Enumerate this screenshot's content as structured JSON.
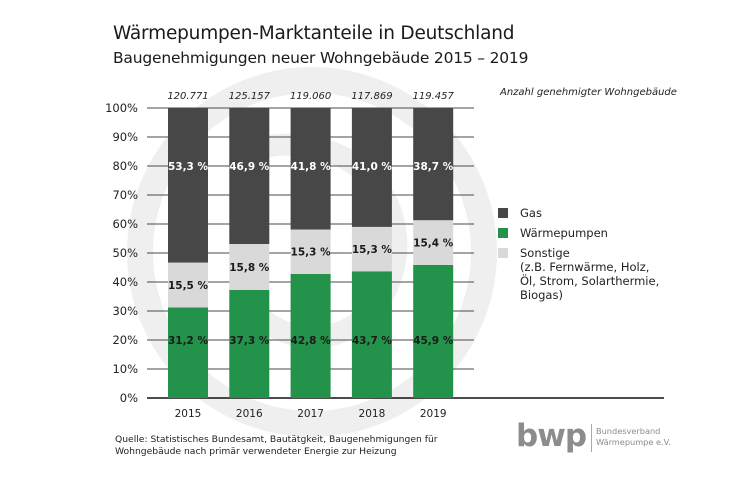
{
  "title": "Wärmepumpen-Marktanteile in Deutschland",
  "subtitle": "Baugenehmigungen neuer Wohngebäude 2015 – 2019",
  "count_caption": "Anzahl genehmigter Wohngebäude",
  "source": "Quelle: Statistisches Bundesamt, Bautätgkeit, Baugenehmigungen für\nWohngebäude nach primär verwendeter Energie zur Heizung",
  "logo": {
    "mark": "bwp",
    "text": "Bundesverband\nWärmepumpe e.V."
  },
  "colors": {
    "gas": "#474747",
    "waermepumpen": "#23924a",
    "sonstige": "#d9d9d9",
    "grid": "#4a4a4a",
    "watermark": "#efefef"
  },
  "chart_data": {
    "type": "bar",
    "stacked": true,
    "title": "Wärmepumpen-Marktanteile in Deutschland",
    "subtitle": "Baugenehmigungen neuer Wohngebäude 2015 – 2019",
    "xlabel": "",
    "ylabel": "",
    "ylim": [
      0,
      100
    ],
    "yticks": [
      0,
      10,
      20,
      30,
      40,
      50,
      60,
      70,
      80,
      90,
      100
    ],
    "ytick_labels": [
      "0%",
      "10%",
      "20%",
      "30%",
      "40%",
      "50%",
      "60%",
      "70%",
      "80%",
      "90%",
      "100%"
    ],
    "grid": true,
    "legend_position": "right",
    "categories": [
      "2015",
      "2016",
      "2017",
      "2018",
      "2019"
    ],
    "totals": [
      "120.771",
      "125.157",
      "119.060",
      "117.869",
      "119.457"
    ],
    "totals_label": "Anzahl genehmigter Wohngebäude",
    "series": [
      {
        "name": "Wärmepumpen",
        "key": "waermepumpen",
        "values": [
          31.2,
          37.3,
          42.8,
          43.7,
          45.9
        ],
        "labels": [
          "31,2 %",
          "37,3 %",
          "42,8 %",
          "43,7 %",
          "45,9 %"
        ]
      },
      {
        "name": "Sonstige\n(z.B. Fernwärme, Holz,\nÖl, Strom, Solarthermie,\nBiogas)",
        "key": "sonstige",
        "values": [
          15.5,
          15.8,
          15.3,
          15.3,
          15.4
        ],
        "labels": [
          "15,5 %",
          "15,8 %",
          "15,3 %",
          "15,3 %",
          "15,4 %"
        ]
      },
      {
        "name": "Gas",
        "key": "gas",
        "values": [
          53.3,
          46.9,
          41.8,
          41.0,
          38.7
        ],
        "labels": [
          "53,3 %",
          "46,9 %",
          "41,8 %",
          "41,0 %",
          "38,7 %"
        ]
      }
    ],
    "legend": [
      {
        "key": "gas",
        "label": "Gas"
      },
      {
        "key": "waermepumpen",
        "label": "Wärmepumpen"
      },
      {
        "key": "sonstige",
        "label": "Sonstige\n(z.B. Fernwärme, Holz,\nÖl, Strom, Solarthermie,\nBiogas)"
      }
    ]
  }
}
